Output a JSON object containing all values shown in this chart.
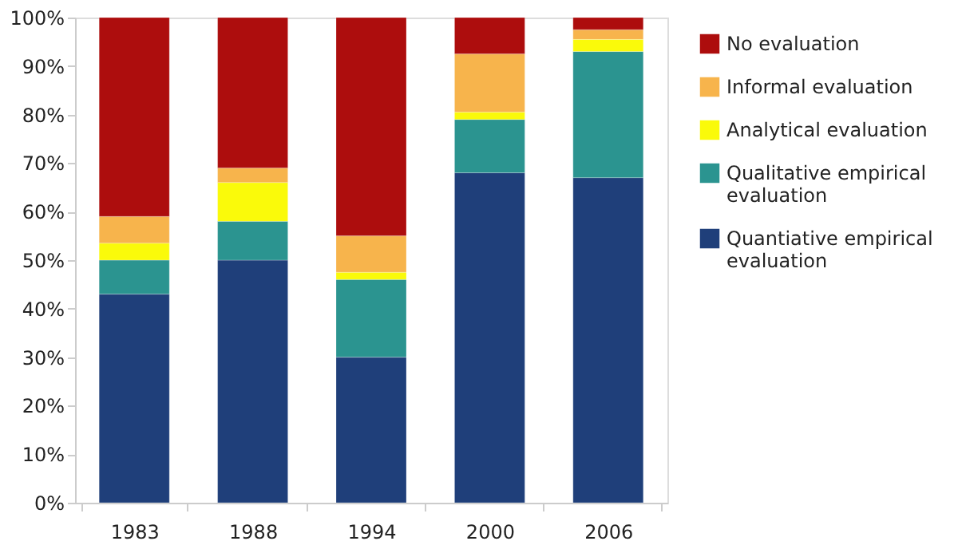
{
  "chart_data": {
    "type": "bar",
    "stacked": true,
    "categories": [
      "1983",
      "1988",
      "1994",
      "2000",
      "2006"
    ],
    "series": [
      {
        "name": "Quantiative empirical evaluation",
        "color": "#1f3f7a",
        "values": [
          43,
          50,
          30,
          68,
          67
        ]
      },
      {
        "name": "Qualitative empirical evaluation",
        "color": "#2b9490",
        "values": [
          7,
          8,
          16,
          11,
          26
        ]
      },
      {
        "name": "Analytical evaluation",
        "color": "#fafa0a",
        "values": [
          3.5,
          8,
          1.5,
          1.5,
          2.5
        ]
      },
      {
        "name": "Informal evaluation",
        "color": "#f7b44c",
        "values": [
          5.5,
          3,
          7.5,
          12,
          2
        ]
      },
      {
        "name": "No evaluation",
        "color": "#ad0d0d",
        "values": [
          41,
          31,
          45,
          7.5,
          2.5
        ]
      }
    ],
    "ylim": [
      0,
      100
    ],
    "yticks": [
      {
        "value": 0,
        "label": "0%"
      },
      {
        "value": 10,
        "label": "10%"
      },
      {
        "value": 20,
        "label": "20%"
      },
      {
        "value": 30,
        "label": "30%"
      },
      {
        "value": 40,
        "label": "40%"
      },
      {
        "value": 50,
        "label": "50%"
      },
      {
        "value": 60,
        "label": "60%"
      },
      {
        "value": 70,
        "label": "70%"
      },
      {
        "value": 80,
        "label": "80%"
      },
      {
        "value": 90,
        "label": "90%"
      },
      {
        "value": 100,
        "label": "100%"
      }
    ],
    "grid": false,
    "legend": "right"
  }
}
